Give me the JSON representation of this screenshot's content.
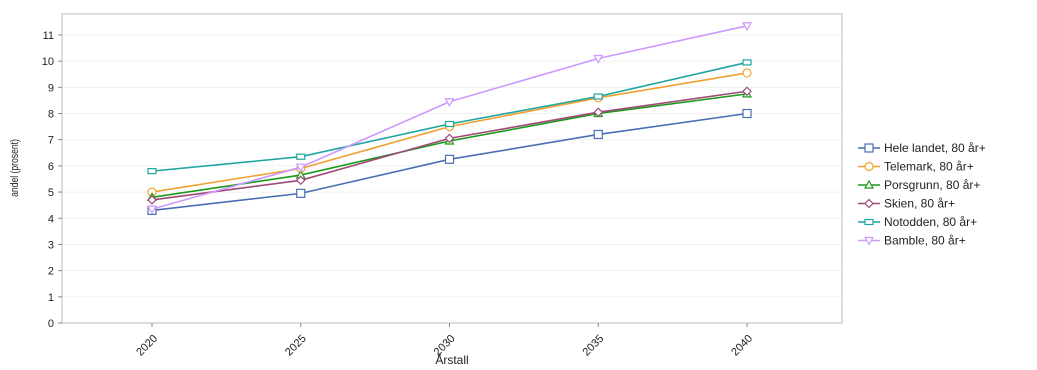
{
  "chart_data": {
    "type": "line",
    "xlabel": "Årstall",
    "ylabel": "andel (prosent)",
    "categories": [
      "2020",
      "2025",
      "2030",
      "2035",
      "2040"
    ],
    "ylim": [
      0,
      11.8
    ],
    "yticks": [
      "0",
      "1",
      "2",
      "3",
      "4",
      "5",
      "6",
      "7",
      "8",
      "9",
      "10",
      "11"
    ],
    "grid": true,
    "legend_position": "right",
    "series": [
      {
        "name": "Hele landet, 80 år+",
        "color": "#4a6fb5",
        "marker": "square",
        "values": [
          4.3,
          4.95,
          6.25,
          7.2,
          8.0
        ]
      },
      {
        "name": "Telemark, 80 år+",
        "color": "#f0a030",
        "marker": "circle",
        "values": [
          5.0,
          5.9,
          7.5,
          8.6,
          9.55
        ]
      },
      {
        "name": "Porsgrunn, 80 år+",
        "color": "#1a9a1a",
        "marker": "triangle-up",
        "values": [
          4.8,
          5.65,
          6.95,
          8.0,
          8.75
        ]
      },
      {
        "name": "Skien, 80 år+",
        "color": "#a04878",
        "marker": "diamond",
        "values": [
          4.7,
          5.45,
          7.05,
          8.05,
          8.85
        ]
      },
      {
        "name": "Notodden, 80 år+",
        "color": "#1fa5a0",
        "marker": "rect",
        "values": [
          5.8,
          6.35,
          7.6,
          8.65,
          9.95
        ]
      },
      {
        "name": "Bamble, 80 år+",
        "color": "#cc99ff",
        "marker": "triangle-down",
        "values": [
          4.35,
          5.95,
          8.45,
          10.1,
          11.35
        ]
      }
    ]
  }
}
